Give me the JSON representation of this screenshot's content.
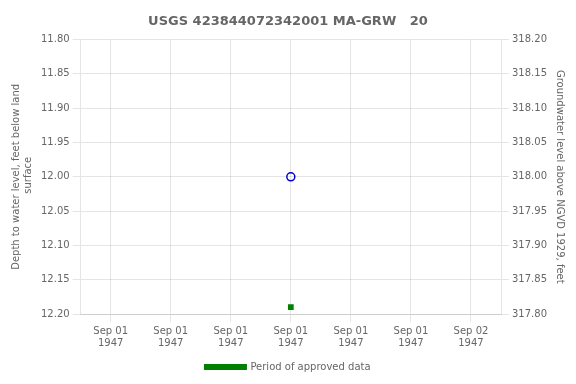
{
  "chart_data": {
    "type": "scatter",
    "title": "USGS 423844072342001 MA-GRW   20",
    "ylabel": "Depth to water level, feet below land\n surface",
    "y2label": "Groundwater level above NGVD 1929, feet",
    "categories": [
      "Sep 01\n1947",
      "Sep 01\n1947",
      "Sep 01\n1947",
      "Sep 01\n1947",
      "Sep 01\n1947",
      "Sep 01\n1947",
      "Sep 02\n1947"
    ],
    "series": [
      {
        "color": "#0000cc",
        "marker": "circle_open",
        "values": [
          null,
          null,
          null,
          12.0,
          null,
          null,
          null
        ]
      },
      {
        "color": "#008000",
        "marker": "square",
        "values": [
          null,
          null,
          null,
          12.19,
          null,
          null,
          null
        ]
      },
      {
        "name": "Period of approved data",
        "type": "line",
        "color": "#008000",
        "values": [
          null,
          null,
          null,
          null,
          null,
          null,
          null
        ]
      }
    ],
    "ylim": [
      12.2,
      11.8
    ],
    "yticks": [
      {
        "value": 11.8,
        "label": "11.80"
      },
      {
        "value": 11.85,
        "label": "11.85"
      },
      {
        "value": 11.9,
        "label": "11.90"
      },
      {
        "value": 11.95,
        "label": "11.95"
      },
      {
        "value": 12.0,
        "label": "12.00"
      },
      {
        "value": 12.05,
        "label": "12.05"
      },
      {
        "value": 12.1,
        "label": "12.10"
      },
      {
        "value": 12.15,
        "label": "12.15"
      },
      {
        "value": 12.2,
        "label": "12.20"
      }
    ],
    "y2lim": [
      317.8,
      318.2
    ],
    "y2ticks": [
      {
        "value": 318.2,
        "label": "318.20"
      },
      {
        "value": 318.15,
        "label": "318.15"
      },
      {
        "value": 318.1,
        "label": "318.10"
      },
      {
        "value": 318.05,
        "label": "318.05"
      },
      {
        "value": 318.0,
        "label": "318.00"
      },
      {
        "value": 317.95,
        "label": "317.95"
      },
      {
        "value": 317.9,
        "label": "317.90"
      },
      {
        "value": 317.85,
        "label": "317.85"
      },
      {
        "value": 317.8,
        "label": "317.80"
      }
    ],
    "grid": true,
    "legend": "bottom"
  }
}
